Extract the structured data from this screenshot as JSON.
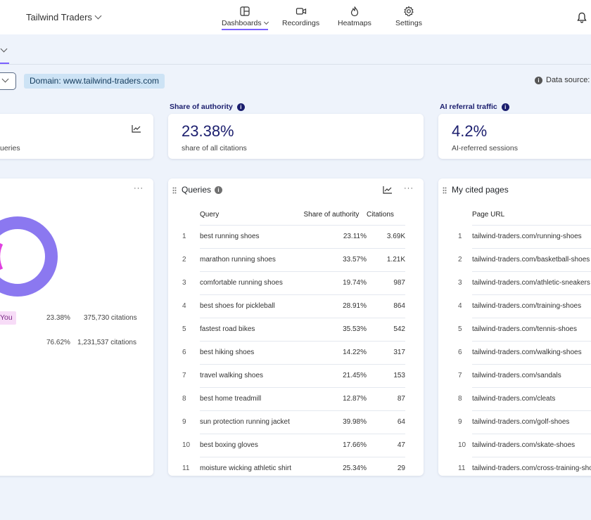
{
  "header": {
    "brand": "Tailwind Traders",
    "nav": [
      {
        "label": "Dashboards",
        "icon": "dashboard-icon"
      },
      {
        "label": "Recordings",
        "icon": "video-camera-icon"
      },
      {
        "label": "Heatmaps",
        "icon": "flame-icon"
      },
      {
        "label": "Settings",
        "icon": "gear-icon"
      }
    ],
    "accent": "#7b61ff"
  },
  "filters": {
    "domain": "Domain: www.tailwind-traders.com",
    "data_source": "Data source: M"
  },
  "kpis": {
    "left": {
      "sub": "ueries"
    },
    "authority": {
      "label": "Share of authority",
      "value": "23.38%",
      "sub": "share of all citations"
    },
    "ai_referral": {
      "label": "AI referral traffic",
      "value": "4.2%",
      "sub": "AI-referred sessions"
    }
  },
  "donut": {
    "colors": {
      "you": "#e040e0",
      "others": "#8b78f0"
    },
    "legend": [
      {
        "label": "You",
        "share": "23.38%",
        "citations": "375,730 citations"
      },
      {
        "label": "",
        "share": "76.62%",
        "citations": "1,231,537 citations"
      }
    ]
  },
  "queries": {
    "title": "Queries",
    "columns": [
      "Query",
      "Share of authority",
      "Citations"
    ],
    "rows": [
      {
        "n": "1",
        "query": "best running shoes",
        "share": "23.11%",
        "citations": "3.69K"
      },
      {
        "n": "2",
        "query": "marathon running shoes",
        "share": "33.57%",
        "citations": "1.21K"
      },
      {
        "n": "3",
        "query": "comfortable running shoes",
        "share": "19.74%",
        "citations": "987"
      },
      {
        "n": "4",
        "query": "best shoes for pickleball",
        "share": "28.91%",
        "citations": "864"
      },
      {
        "n": "5",
        "query": "fastest road bikes",
        "share": "35.53%",
        "citations": "542"
      },
      {
        "n": "6",
        "query": "best hiking shoes",
        "share": "14.22%",
        "citations": "317"
      },
      {
        "n": "7",
        "query": "travel walking shoes",
        "share": "21.45%",
        "citations": "153"
      },
      {
        "n": "8",
        "query": "best home treadmill",
        "share": "12.87%",
        "citations": "87"
      },
      {
        "n": "9",
        "query": "sun protection running jacket",
        "share": "39.98%",
        "citations": "64"
      },
      {
        "n": "10",
        "query": "best boxing gloves",
        "share": "17.66%",
        "citations": "47"
      },
      {
        "n": "11",
        "query": "moisture wicking athletic shirt",
        "share": "25.34%",
        "citations": "29"
      }
    ]
  },
  "cited_pages": {
    "title": "My cited pages",
    "column": "Page URL",
    "rows": [
      {
        "n": "1",
        "url": "tailwind-traders.com/running-shoes"
      },
      {
        "n": "2",
        "url": "tailwind-traders.com/basketball-shoes"
      },
      {
        "n": "3",
        "url": "tailwind-traders.com/athletic-sneakers"
      },
      {
        "n": "4",
        "url": "tailwind-traders.com/training-shoes"
      },
      {
        "n": "5",
        "url": "tailwind-traders.com/tennis-shoes"
      },
      {
        "n": "6",
        "url": "tailwind-traders.com/walking-shoes"
      },
      {
        "n": "7",
        "url": "tailwind-traders.com/sandals"
      },
      {
        "n": "8",
        "url": "tailwind-traders.com/cleats"
      },
      {
        "n": "9",
        "url": "tailwind-traders.com/golf-shoes"
      },
      {
        "n": "10",
        "url": "tailwind-traders.com/skate-shoes"
      },
      {
        "n": "11",
        "url": "tailwind-traders.com/cross-training-shoes"
      }
    ]
  }
}
